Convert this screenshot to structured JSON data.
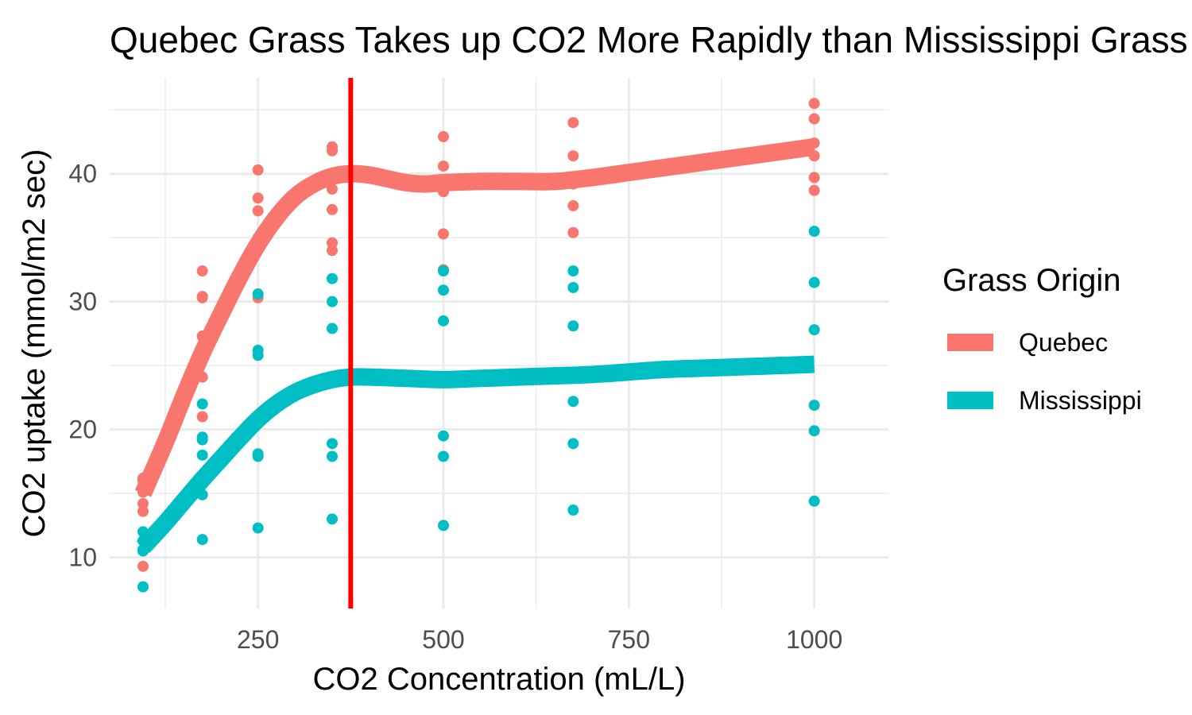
{
  "chart_data": {
    "type": "scatter",
    "title": "Quebec Grass Takes up CO2 More Rapidly than Mississippi Grass",
    "xlabel": "CO2 Concentration (mL/L)",
    "ylabel": "CO2 uptake (mmol/m2 sec)",
    "xlim": [
      50,
      1100
    ],
    "ylim": [
      6.0,
      47.5
    ],
    "x_ticks": [
      250,
      500,
      750,
      1000
    ],
    "y_ticks": [
      10,
      20,
      30,
      40
    ],
    "grid": true,
    "legend": {
      "title": "Grass Origin",
      "position": "right"
    },
    "reference_line": {
      "orientation": "vertical",
      "x": 375,
      "color": "#ff0000"
    },
    "series": [
      {
        "name": "Quebec",
        "color": "#f8766d",
        "points": [
          [
            95,
            16.0
          ],
          [
            95,
            13.6
          ],
          [
            95,
            16.2
          ],
          [
            95,
            14.2
          ],
          [
            95,
            9.3
          ],
          [
            95,
            15.1
          ],
          [
            175,
            30.4
          ],
          [
            175,
            27.3
          ],
          [
            175,
            24.1
          ],
          [
            175,
            30.3
          ],
          [
            175,
            27.3
          ],
          [
            175,
            21.0
          ],
          [
            175,
            32.4
          ],
          [
            250,
            34.8
          ],
          [
            250,
            37.1
          ],
          [
            250,
            35.0
          ],
          [
            250,
            38.1
          ],
          [
            250,
            40.3
          ],
          [
            250,
            30.3
          ],
          [
            350,
            37.2
          ],
          [
            350,
            41.8
          ],
          [
            350,
            38.8
          ],
          [
            350,
            34.6
          ],
          [
            350,
            42.1
          ],
          [
            350,
            34.0
          ],
          [
            500,
            35.3
          ],
          [
            500,
            40.6
          ],
          [
            500,
            38.6
          ],
          [
            500,
            32.5
          ],
          [
            500,
            42.9
          ],
          [
            675,
            39.2
          ],
          [
            675,
            41.4
          ],
          [
            675,
            37.5
          ],
          [
            675,
            35.4
          ],
          [
            675,
            44.0
          ],
          [
            1000,
            39.7
          ],
          [
            1000,
            44.3
          ],
          [
            1000,
            42.4
          ],
          [
            1000,
            41.4
          ],
          [
            1000,
            38.7
          ],
          [
            1000,
            45.5
          ]
        ],
        "smooth": [
          [
            95,
            15.0
          ],
          [
            125,
            19.0
          ],
          [
            150,
            22.6
          ],
          [
            175,
            26.0
          ],
          [
            200,
            29.0
          ],
          [
            225,
            31.9
          ],
          [
            250,
            34.5
          ],
          [
            275,
            36.6
          ],
          [
            300,
            38.2
          ],
          [
            325,
            39.2
          ],
          [
            350,
            39.8
          ],
          [
            375,
            40.0
          ],
          [
            400,
            39.9
          ],
          [
            425,
            39.6
          ],
          [
            450,
            39.3
          ],
          [
            475,
            39.2
          ],
          [
            500,
            39.3
          ],
          [
            550,
            39.4
          ],
          [
            600,
            39.4
          ],
          [
            650,
            39.4
          ],
          [
            700,
            39.7
          ],
          [
            750,
            40.1
          ],
          [
            800,
            40.5
          ],
          [
            850,
            40.9
          ],
          [
            900,
            41.3
          ],
          [
            950,
            41.7
          ],
          [
            1000,
            42.1
          ]
        ]
      },
      {
        "name": "Mississippi",
        "color": "#00bfc4",
        "points": [
          [
            95,
            10.6
          ],
          [
            95,
            12.0
          ],
          [
            95,
            11.3
          ],
          [
            95,
            10.5
          ],
          [
            95,
            7.7
          ],
          [
            95,
            10.6
          ],
          [
            175,
            19.2
          ],
          [
            175,
            22.0
          ],
          [
            175,
            19.4
          ],
          [
            175,
            14.9
          ],
          [
            175,
            11.4
          ],
          [
            175,
            18.0
          ],
          [
            250,
            26.2
          ],
          [
            250,
            30.6
          ],
          [
            250,
            25.8
          ],
          [
            250,
            18.1
          ],
          [
            250,
            12.3
          ],
          [
            250,
            17.9
          ],
          [
            350,
            30.0
          ],
          [
            350,
            31.8
          ],
          [
            350,
            27.9
          ],
          [
            350,
            18.9
          ],
          [
            350,
            13.0
          ],
          [
            350,
            17.9
          ],
          [
            500,
            30.9
          ],
          [
            500,
            32.4
          ],
          [
            500,
            28.5
          ],
          [
            500,
            19.5
          ],
          [
            500,
            12.5
          ],
          [
            500,
            17.9
          ],
          [
            675,
            32.4
          ],
          [
            675,
            31.1
          ],
          [
            675,
            28.1
          ],
          [
            675,
            22.2
          ],
          [
            675,
            13.7
          ],
          [
            675,
            18.9
          ],
          [
            1000,
            35.5
          ],
          [
            1000,
            31.5
          ],
          [
            1000,
            27.8
          ],
          [
            1000,
            21.9
          ],
          [
            1000,
            14.4
          ],
          [
            1000,
            19.9
          ]
        ],
        "smooth": [
          [
            95,
            10.8
          ],
          [
            125,
            12.7
          ],
          [
            150,
            14.4
          ],
          [
            175,
            16.1
          ],
          [
            200,
            17.7
          ],
          [
            225,
            19.3
          ],
          [
            250,
            20.8
          ],
          [
            275,
            22.0
          ],
          [
            300,
            22.9
          ],
          [
            325,
            23.5
          ],
          [
            350,
            23.9
          ],
          [
            375,
            24.1
          ],
          [
            400,
            24.1
          ],
          [
            450,
            24.0
          ],
          [
            500,
            23.9
          ],
          [
            550,
            24.0
          ],
          [
            600,
            24.1
          ],
          [
            650,
            24.2
          ],
          [
            700,
            24.3
          ],
          [
            750,
            24.5
          ],
          [
            800,
            24.7
          ],
          [
            850,
            24.8
          ],
          [
            900,
            24.9
          ],
          [
            950,
            25.0
          ],
          [
            1000,
            25.1
          ]
        ]
      }
    ]
  }
}
